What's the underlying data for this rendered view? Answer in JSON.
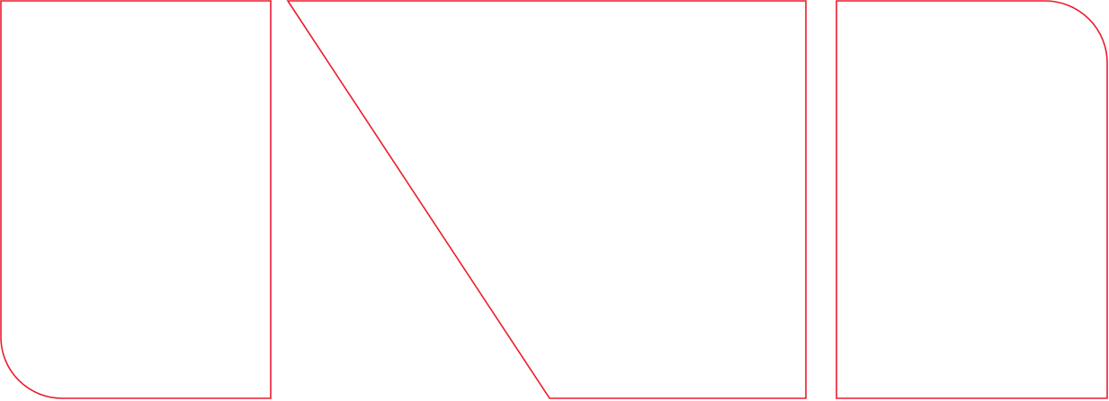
{
  "colors": {
    "stroke": "#ed1c2e",
    "background": "#ffffff"
  },
  "shapes": [
    {
      "id": "left-block",
      "kind": "rectangle with rounded bottom-left corner"
    },
    {
      "id": "middle-block",
      "kind": "trapezoid with diagonal left edge"
    },
    {
      "id": "right-block",
      "kind": "rectangle with rounded top-right corner"
    }
  ]
}
